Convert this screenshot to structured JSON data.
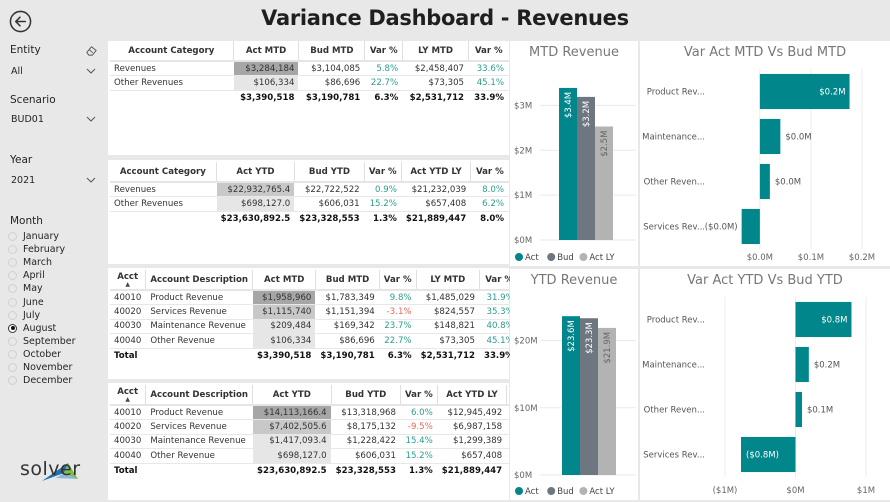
{
  "header": {
    "title": "Variance Dashboard - Revenues",
    "back_icon": "back-arrow-circle-icon"
  },
  "filters": {
    "entity": {
      "label": "Entity",
      "value": "All",
      "clear_icon": "eraser-icon"
    },
    "scenario": {
      "label": "Scenario",
      "value": "BUD01"
    },
    "year": {
      "label": "Year",
      "value": "2021"
    },
    "month": {
      "label": "Month",
      "options": [
        "January",
        "February",
        "March",
        "April",
        "May",
        "June",
        "July",
        "August",
        "September",
        "October",
        "November",
        "December"
      ],
      "selected": "August"
    }
  },
  "brand": {
    "name": "solver",
    "colors": {
      "blue": "#1f6fb2",
      "green": "#7bbf4a"
    }
  },
  "colors": {
    "act": "#00868b",
    "bud": "#6e7780",
    "act_ly": "#b3b3b3",
    "positive": "#2a9d8f",
    "negative": "#e8695a"
  },
  "tables": {
    "mtd_category": {
      "headers": [
        "Account Category",
        "Act MTD",
        "Bud MTD",
        "Var %",
        "LY MTD",
        "Var %"
      ],
      "rows": [
        [
          "Revenues",
          "$3,284,184",
          "$3,104,085",
          "5.8%",
          "$2,458,407",
          "33.6%"
        ],
        [
          "Other Revenues",
          "$106,334",
          "$86,696",
          "22.7%",
          "$73,305",
          "45.1%"
        ]
      ],
      "total": [
        "",
        "$3,390,518",
        "$3,190,781",
        "6.3%",
        "$2,531,712",
        "33.9%"
      ]
    },
    "ytd_category": {
      "headers": [
        "Account Category",
        "Act YTD",
        "Bud YTD",
        "Var %",
        "Act YTD LY",
        "Var %"
      ],
      "rows": [
        [
          "Revenues",
          "$22,932,765.4",
          "$22,722,522",
          "0.9%",
          "$21,232,039",
          "8.0%"
        ],
        [
          "Other Revenues",
          "$698,127.0",
          "$606,031",
          "15.2%",
          "$657,408",
          "6.2%"
        ]
      ],
      "total": [
        "",
        "$23,630,892.5",
        "$23,328,553",
        "1.3%",
        "$21,889,447",
        "8.0%"
      ]
    },
    "mtd_account": {
      "headers": [
        "Acct",
        "Account Description",
        "Act MTD",
        "Bud MTD",
        "Var %",
        "LY MTD",
        "Var %"
      ],
      "rows": [
        [
          "40010",
          "Product Revenue",
          "$1,958,960",
          "$1,783,349",
          "9.8%",
          "$1,485,029",
          "31.9%"
        ],
        [
          "40020",
          "Services Revenue",
          "$1,115,740",
          "$1,151,394",
          "-3.1%",
          "$824,557",
          "35.3%"
        ],
        [
          "40030",
          "Maintenance Revenue",
          "$209,484",
          "$169,342",
          "23.7%",
          "$148,821",
          "40.8%"
        ],
        [
          "40040",
          "Other Revenue",
          "$106,334",
          "$86,696",
          "22.7%",
          "$73,305",
          "45.1%"
        ]
      ],
      "total": [
        "Total",
        "",
        "$3,390,518",
        "$3,190,781",
        "6.3%",
        "$2,531,712",
        "33.9%"
      ]
    },
    "ytd_account": {
      "headers": [
        "Acct",
        "Account Description",
        "Act YTD",
        "Bud YTD",
        "Var %",
        "Act YTD LY",
        "LY Var %"
      ],
      "rows": [
        [
          "40010",
          "Product Revenue",
          "$14,113,166.4",
          "$13,318,968",
          "6.0%",
          "$12,945,492",
          "9.0%"
        ],
        [
          "40020",
          "Services Revenue",
          "$7,402,505.6",
          "$8,175,132",
          "-9.5%",
          "$6,987,158",
          "5.9%"
        ],
        [
          "40030",
          "Maintenance Revenue",
          "$1,417,093.4",
          "$1,228,422",
          "15.4%",
          "$1,299,389",
          "9.1%"
        ],
        [
          "40040",
          "Other Revenue",
          "$698,127.0",
          "$606,031",
          "15.2%",
          "$657,408",
          "6.2%"
        ]
      ],
      "total": [
        "Total",
        "",
        "$23,630,892.5",
        "$23,328,553",
        "1.3%",
        "$21,889,447",
        "8.0%"
      ]
    }
  },
  "chart_data": [
    {
      "id": "mtd_revenue",
      "type": "bar",
      "title": "MTD Revenue",
      "categories": [
        "Act",
        "Bud",
        "Act LY"
      ],
      "values": [
        3.39,
        3.19,
        2.53
      ],
      "data_labels": [
        "$3.4M",
        "$3.2M",
        "$2.5M"
      ],
      "yticks": [
        "$0M",
        "$1M",
        "$2M",
        "$3M"
      ],
      "ylim": [
        0,
        3.6
      ],
      "units": "$M",
      "legend": [
        "Act",
        "Bud",
        "Act LY"
      ],
      "legend_position": "bottom-left",
      "grid": true
    },
    {
      "id": "ytd_revenue",
      "type": "bar",
      "title": "YTD Revenue",
      "categories": [
        "Act",
        "Bud",
        "Act LY"
      ],
      "values": [
        23.63,
        23.33,
        21.89
      ],
      "data_labels": [
        "$23.6M",
        "$23.3M",
        "$21.9M"
      ],
      "yticks": [
        "$0M",
        "$10M",
        "$20M"
      ],
      "ylim": [
        0,
        25
      ],
      "units": "$M",
      "legend": [
        "Act",
        "Bud",
        "Act LY"
      ],
      "legend_position": "bottom-left",
      "grid": true
    },
    {
      "id": "var_mtd",
      "type": "bar",
      "orientation": "horizontal",
      "title": "Var Act MTD Vs Bud MTD",
      "categories": [
        "Product Rev...",
        "Maintenance...",
        "Other Reven...",
        "Services Rev..."
      ],
      "values": [
        0.1756,
        0.0401,
        0.0196,
        -0.0357
      ],
      "data_labels": [
        "$0.2M",
        "$0.0M",
        "$0.0M",
        "($0.0M)"
      ],
      "xticks": [
        "$0.0M",
        "$0.1M",
        "$0.2M"
      ],
      "xlim": [
        -0.035,
        0.2
      ],
      "units": "$M",
      "grid": true
    },
    {
      "id": "var_ytd",
      "type": "bar",
      "orientation": "horizontal",
      "title": "Var Act YTD Vs Bud YTD",
      "categories": [
        "Product Rev...",
        "Maintenance...",
        "Other Reven...",
        "Services Rev..."
      ],
      "values": [
        0.794,
        0.189,
        0.092,
        -0.773
      ],
      "data_labels": [
        "$0.8M",
        "$0.2M",
        "$0.1M",
        "($0.8M)"
      ],
      "xticks": [
        "($1M)",
        "$0M",
        "$1M"
      ],
      "xlim": [
        -1,
        1
      ],
      "units": "$M",
      "grid": true
    }
  ]
}
